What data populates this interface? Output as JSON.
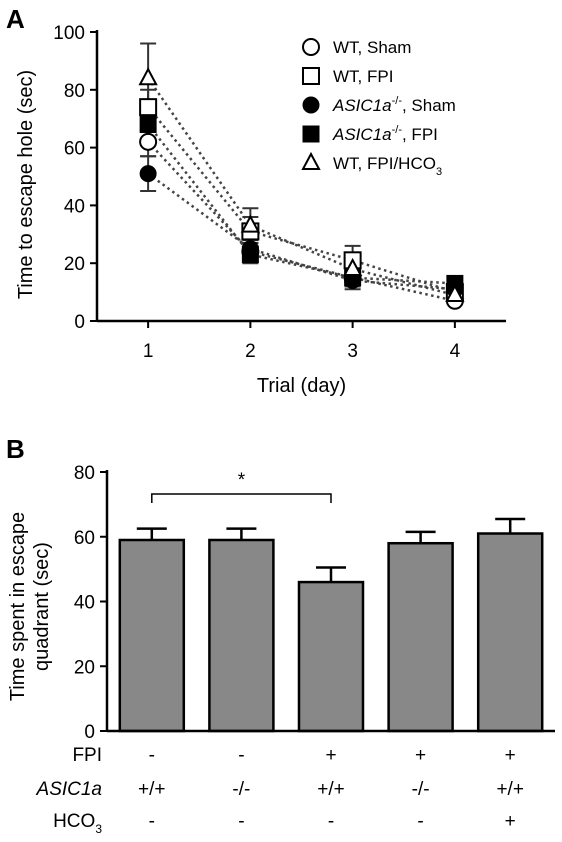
{
  "panels": {
    "a_label": "A",
    "b_label": "B"
  },
  "chart_data": [
    {
      "type": "line",
      "panel": "A",
      "title": "",
      "xlabel": "Trial (day)",
      "ylabel": "Time to escape hole (sec)",
      "x": [
        1,
        2,
        3,
        4
      ],
      "xticks": [
        "1",
        "2",
        "3",
        "4"
      ],
      "xlim": [
        0.5,
        4.5
      ],
      "ylim": [
        0,
        100
      ],
      "yticks": [
        "0",
        "20",
        "40",
        "60",
        "80",
        "100"
      ],
      "line_style": "dotted",
      "legend_position": "top-right",
      "series": [
        {
          "legend_main": "WT",
          "legend_sup": "",
          "legend_rest": ", Sham",
          "legend_sub": "",
          "marker": "open-circle",
          "values": [
            62,
            24,
            15,
            7
          ],
          "errors": [
            5,
            3,
            3,
            1
          ]
        },
        {
          "legend_main": "WT",
          "legend_sup": "",
          "legend_rest": ", FPI",
          "legend_sub": "",
          "marker": "open-square",
          "values": [
            74,
            31,
            21,
            10
          ],
          "errors": [
            6,
            5,
            5,
            2
          ]
        },
        {
          "legend_main": "ASIC1a",
          "legend_sup": "-/-",
          "legend_rest": ", Sham",
          "legend_sub": "",
          "marker": "filled-circle",
          "values": [
            51,
            25,
            14,
            11
          ],
          "errors": [
            6,
            3,
            3,
            2
          ]
        },
        {
          "legend_main": "ASIC1a",
          "legend_sup": "-/-",
          "legend_rest": ", FPI",
          "legend_sub": "",
          "marker": "filled-square",
          "values": [
            68,
            23,
            15,
            13
          ],
          "errors": [
            7,
            3,
            3,
            2
          ]
        },
        {
          "legend_main": "WT",
          "legend_sup": "",
          "legend_rest": ", FPI/HCO",
          "legend_sub": "3",
          "marker": "open-triangle",
          "values": [
            84,
            33,
            18,
            9
          ],
          "errors": [
            12,
            6,
            4,
            2
          ]
        }
      ]
    },
    {
      "type": "bar",
      "panel": "B",
      "title": "",
      "xlabel": "",
      "ylabel_line1": "Time spent in escape",
      "ylabel_line2": "quadrant (sec)",
      "ylim": [
        0,
        80
      ],
      "yticks": [
        "0",
        "20",
        "40",
        "60",
        "80"
      ],
      "bar_color": "#888888",
      "values": [
        59,
        59,
        46,
        58,
        61
      ],
      "errors": [
        3.5,
        3.5,
        4.5,
        3.5,
        4.5
      ],
      "significance": {
        "from": 0,
        "to": 2,
        "label": "*"
      },
      "rows": [
        {
          "label": "FPI",
          "label_sub": "",
          "italic": false,
          "values": [
            "-",
            "-",
            "+",
            "+",
            "+"
          ]
        },
        {
          "label": "ASIC1a",
          "label_sub": "",
          "italic": true,
          "values": [
            "+/+",
            "-/-",
            "+/+",
            "-/-",
            "+/+"
          ]
        },
        {
          "label": "HCO",
          "label_sub": "3",
          "italic": false,
          "values": [
            "-",
            "-",
            "-",
            "-",
            "+"
          ]
        }
      ]
    }
  ]
}
